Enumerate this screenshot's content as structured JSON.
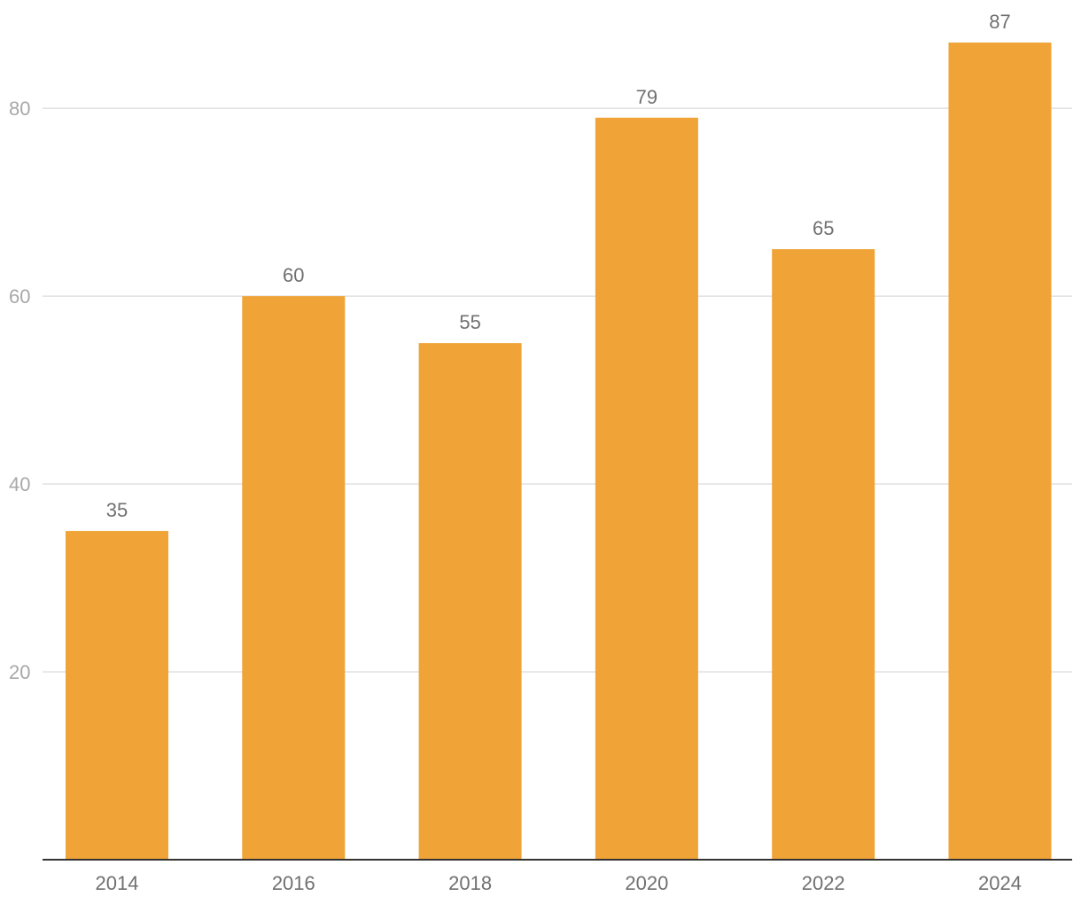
{
  "chart_data": {
    "type": "bar",
    "title": "",
    "xlabel": "",
    "ylabel": "",
    "categories": [
      "2014",
      "2016",
      "2018",
      "2020",
      "2022",
      "2024"
    ],
    "values": [
      35,
      60,
      55,
      79,
      65,
      87
    ],
    "data_labels": [
      "35",
      "60",
      "55",
      "79",
      "65",
      "87"
    ],
    "y_ticks": [
      20,
      40,
      60,
      80
    ],
    "y_tick_labels": [
      "20",
      "40",
      "60",
      "80"
    ],
    "ylim": [
      0,
      87
    ],
    "grid": true,
    "legend": "none",
    "colors": {
      "bar": "#F0A336",
      "grid": "#E3E3E3",
      "axis": "#333333",
      "tick_text": "#A8A8A8",
      "category_text": "#707070"
    }
  }
}
